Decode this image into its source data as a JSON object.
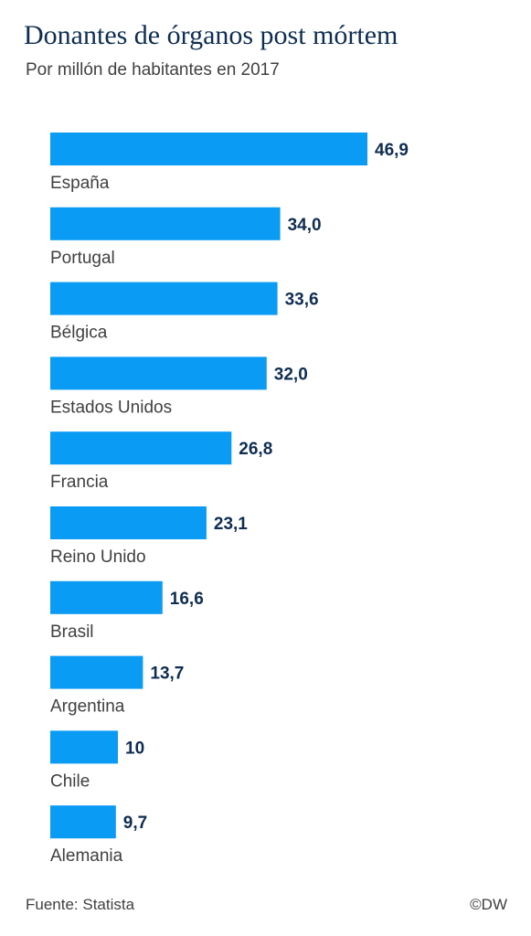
{
  "header": {
    "title": "Donantes de órganos post mórtem",
    "subtitle": "Por millón de habitantes en 2017"
  },
  "footer": {
    "source": "Fuente: Statista",
    "brand": "©DW"
  },
  "colors": {
    "bar": "#0a9bf5",
    "value_label": "#0f2d52",
    "title": "#0f2d52",
    "text": "#404040"
  },
  "chart_data": {
    "type": "bar",
    "orientation": "horizontal",
    "categories": [
      "España",
      "Portugal",
      "Bélgica",
      "Estados Unidos",
      "Francia",
      "Reino Unido",
      "Brasil",
      "Argentina",
      "Chile",
      "Alemania"
    ],
    "values": [
      46.9,
      34.0,
      33.6,
      32.0,
      26.8,
      23.1,
      16.6,
      13.7,
      10,
      9.7
    ],
    "value_labels": [
      "46,9",
      "34,0",
      "33,6",
      "32,0",
      "26,8",
      "23,1",
      "16,6",
      "13,7",
      "10",
      "9,7"
    ],
    "title": "Donantes de órganos post mórtem",
    "subtitle": "Por millón de habitantes en 2017",
    "xlabel": "",
    "ylabel": "",
    "grid": false,
    "legend": "none"
  }
}
